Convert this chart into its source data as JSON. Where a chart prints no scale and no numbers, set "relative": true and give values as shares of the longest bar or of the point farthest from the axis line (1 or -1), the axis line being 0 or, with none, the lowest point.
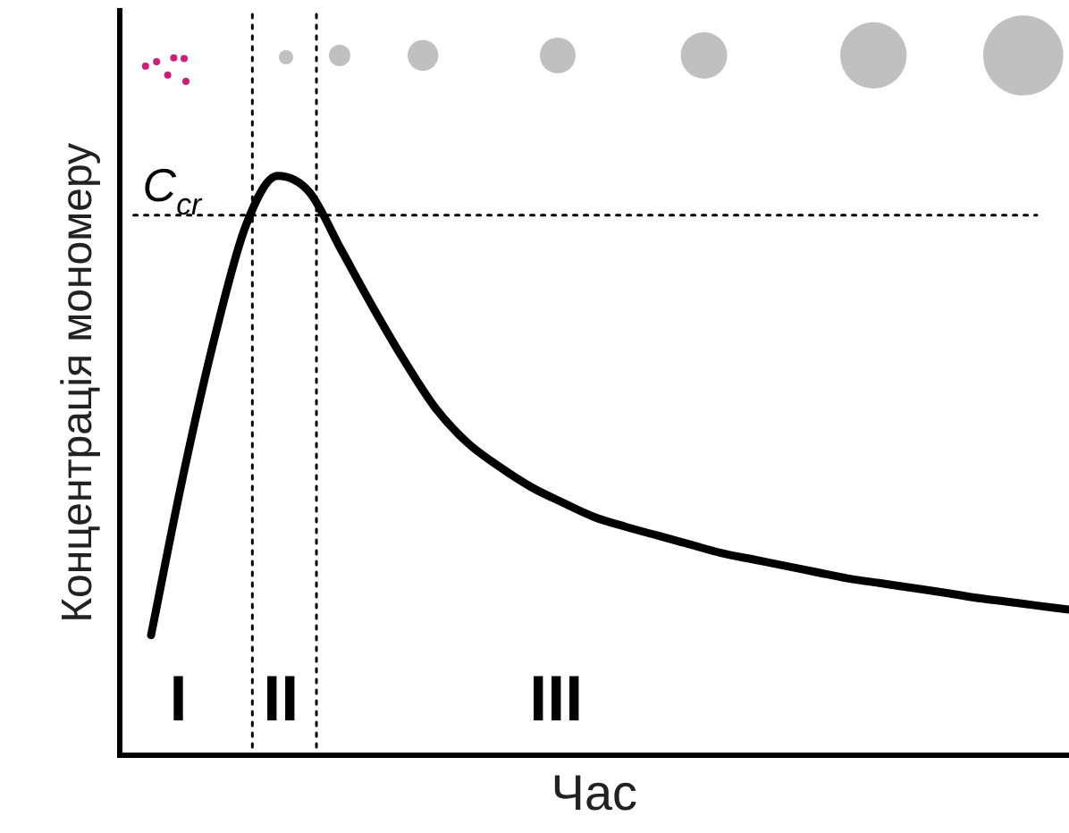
{
  "chart_data": {
    "type": "line",
    "relative": true,
    "xlabel": "Час",
    "ylabel": "Концентрація мономеру",
    "categories": [
      null,
      null,
      null,
      null,
      null,
      null,
      null,
      null,
      null,
      null,
      null,
      null,
      null,
      null,
      null,
      null,
      null,
      null,
      null,
      null,
      null,
      null,
      null,
      null,
      null,
      null,
      null,
      null,
      null,
      null,
      null
    ],
    "series": [
      {
        "color": "#000000",
        "values": [
          null,
          0.207,
          0.479,
          0.719,
          0.915,
          1,
          0.972,
          0.873,
          0.774,
          0.681,
          0.598,
          0.539,
          0.498,
          0.463,
          0.436,
          0.411,
          0.394,
          0.379,
          0.364,
          0.349,
          0.338,
          0.327,
          0.316,
          0.305,
          0.297,
          0.289,
          0.281,
          0.272,
          0.265,
          0.258,
          0.251
        ]
      }
    ],
    "ref_lines": [
      {
        "axis": "y",
        "value": 0.932,
        "label": "C$_{cr}$",
        "line_style": "dotted",
        "color": "#000000"
      }
    ],
    "annotations": [
      "I",
      "II",
      "III"
    ],
    "grid": false,
    "legend": false,
    "tick_labels": false,
    "marker": "none",
    "line_style": "solid"
  }
}
